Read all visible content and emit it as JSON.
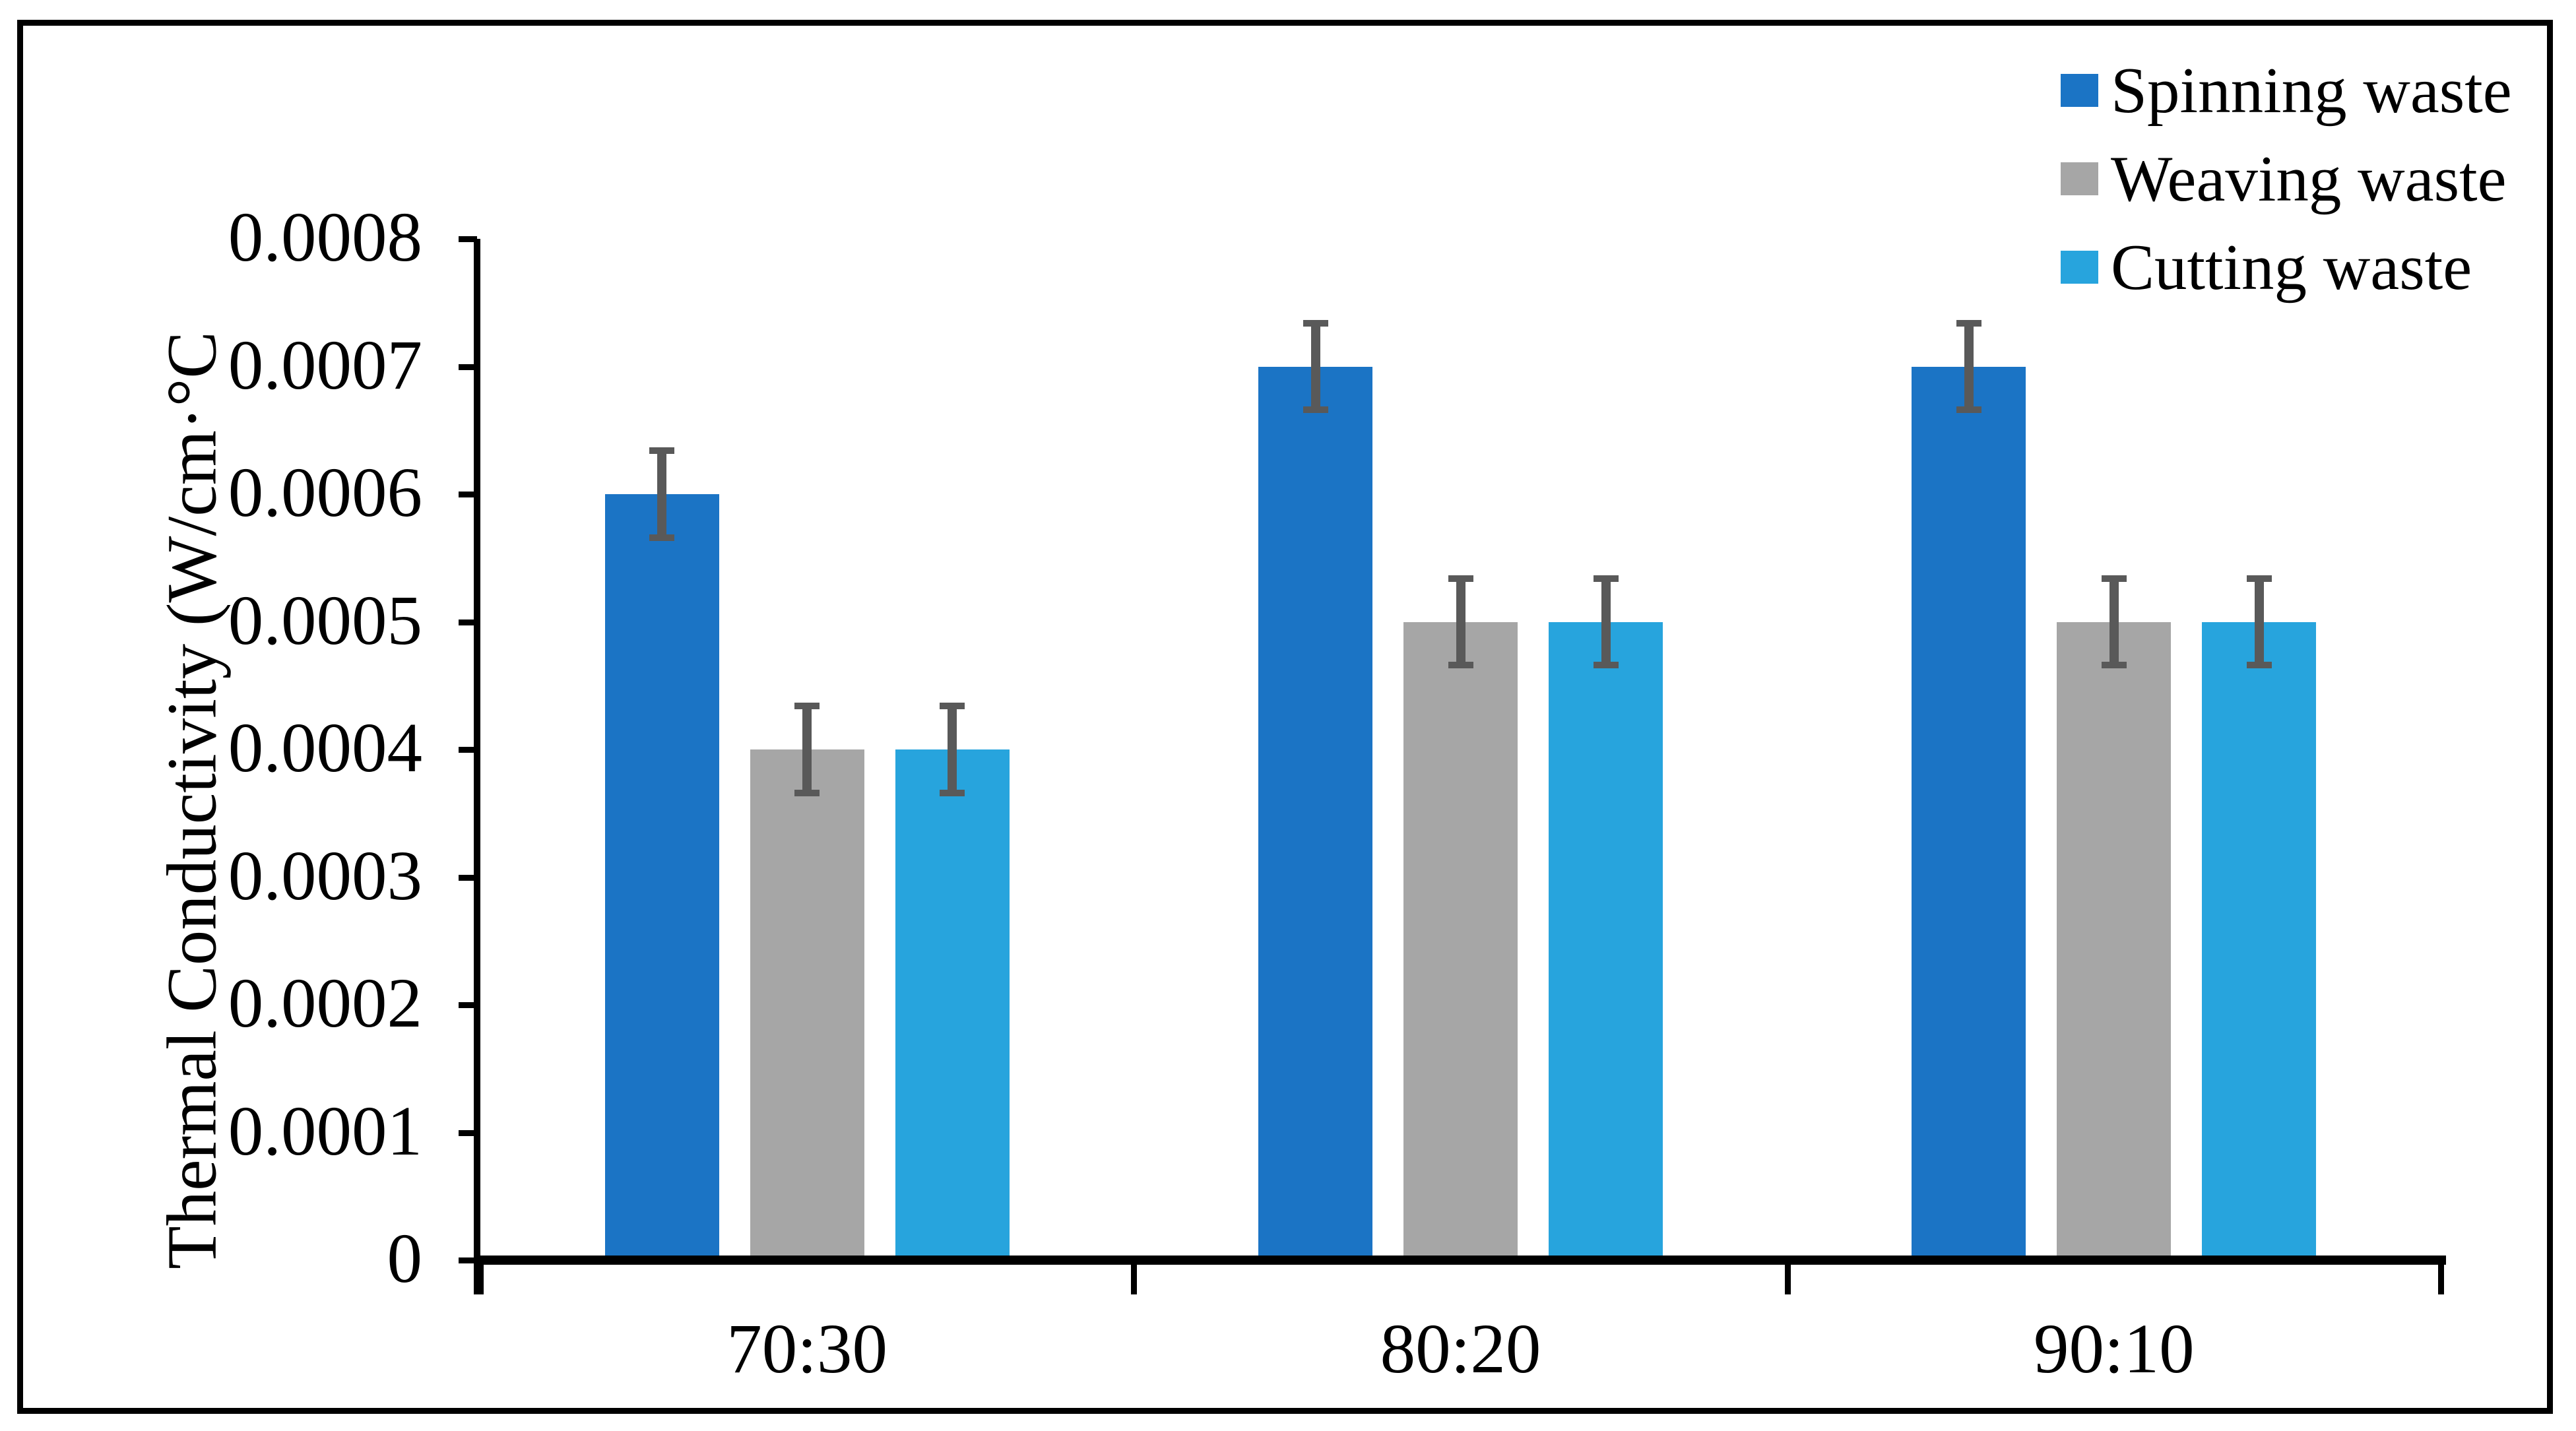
{
  "chart_data": {
    "type": "bar",
    "title": "",
    "xlabel": "",
    "ylabel": "Thermal Conductivity (W/cm·°C",
    "categories": [
      "70:30",
      "80:20",
      "90:10"
    ],
    "series": [
      {
        "name": "Spinning waste",
        "color": "#1B74C5",
        "values": [
          0.0006,
          0.0007,
          0.0007
        ]
      },
      {
        "name": "Weaving waste",
        "color": "#A6A6A6",
        "values": [
          0.0004,
          0.0005,
          0.0005
        ]
      },
      {
        "name": "Cutting waste",
        "color": "#27A4DD",
        "values": [
          0.0004,
          0.0005,
          0.0005
        ]
      }
    ],
    "error_bars": {
      "value": 3.4e-05,
      "color": "#595959"
    },
    "ylim": [
      0,
      0.0008
    ],
    "y_tick_step": 0.0001,
    "y_tick_labels": [
      "0",
      "0.0001",
      "0.0002",
      "0.0003",
      "0.0004",
      "0.0005",
      "0.0006",
      "0.0007",
      "0.0008"
    ],
    "grid": false,
    "legend_position": "top-right",
    "axis_color": "#000000",
    "background_color": "#FFFFFF"
  }
}
